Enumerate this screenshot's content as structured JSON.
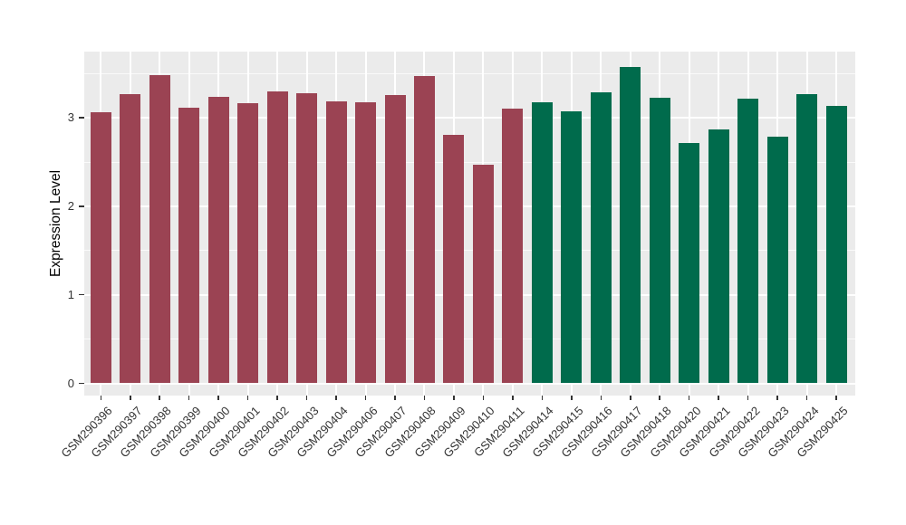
{
  "figure": {
    "background_color": "#FFFFFF",
    "panel_background_color": "#EBEBEB",
    "grid_color": "#FFFFFF",
    "axis_text_color": "#333333",
    "axis_title_color": "#000000"
  },
  "chart_data": {
    "type": "bar",
    "title": "",
    "xlabel": "",
    "ylabel": "Expression Level",
    "legend_position": "none",
    "grid": true,
    "ylim": [
      -0.14,
      3.75
    ],
    "yticks": [
      "0",
      "1",
      "2",
      "3"
    ],
    "ytick_values": [
      0,
      1,
      2,
      3
    ],
    "ytick_minor_values": [
      0.5,
      1.5,
      2.5,
      3.5
    ],
    "categories": [
      "GSM290396",
      "GSM290397",
      "GSM290398",
      "GSM290399",
      "GSM290400",
      "GSM290401",
      "GSM290402",
      "GSM290403",
      "GSM290404",
      "GSM290406",
      "GSM290407",
      "GSM290408",
      "GSM290409",
      "GSM290410",
      "GSM290411",
      "GSM290414",
      "GSM290415",
      "GSM290416",
      "GSM290417",
      "GSM290418",
      "GSM290420",
      "GSM290421",
      "GSM290422",
      "GSM290423",
      "GSM290424",
      "GSM290425"
    ],
    "values": [
      3.06,
      3.27,
      3.48,
      3.11,
      3.24,
      3.16,
      3.3,
      3.28,
      3.18,
      3.17,
      3.26,
      3.47,
      2.81,
      2.47,
      3.1,
      3.17,
      3.07,
      3.29,
      3.57,
      3.23,
      2.71,
      2.87,
      3.22,
      2.79,
      3.27,
      3.13
    ],
    "groups": [
      "maroon",
      "maroon",
      "maroon",
      "maroon",
      "maroon",
      "maroon",
      "maroon",
      "maroon",
      "maroon",
      "maroon",
      "maroon",
      "maroon",
      "maroon",
      "maroon",
      "maroon",
      "green",
      "green",
      "green",
      "green",
      "green",
      "green",
      "green",
      "green",
      "green",
      "green",
      "green"
    ],
    "group_colors": {
      "maroon": "#9B4353",
      "green": "#006B4C"
    }
  }
}
